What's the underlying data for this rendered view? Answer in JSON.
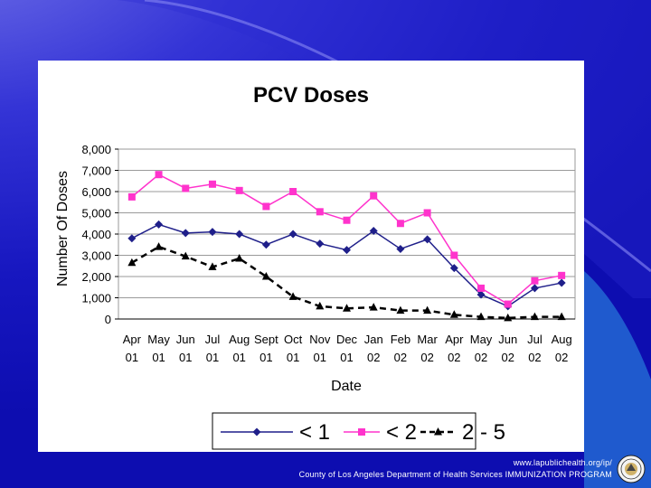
{
  "colors": {
    "lt1": "#1f1f8a",
    "lt2": "#ff33cc",
    "range": "#000000",
    "grid": "#9a9a9a",
    "plot_bg": "#ffffff"
  },
  "footer": {
    "url": "www.lapublichealth.org/ip/",
    "org": "County of Los Angeles Department of Health Services IMMUNIZATION PROGRAM"
  },
  "seal": {
    "icon": "county-seal-icon"
  },
  "chart_data": {
    "type": "line",
    "title": "PCV Doses",
    "xlabel": "Date",
    "ylabel": "Number Of Doses",
    "ylim": [
      0,
      8000
    ],
    "yticks": [
      "0",
      "1,000",
      "2,000",
      "3,000",
      "4,000",
      "5,000",
      "6,000",
      "7,000",
      "8,000"
    ],
    "grid": true,
    "legend_position": "bottom",
    "categories": [
      [
        "Apr",
        "01"
      ],
      [
        "May",
        "01"
      ],
      [
        "Jun",
        "01"
      ],
      [
        "Jul",
        "01"
      ],
      [
        "Aug",
        "01"
      ],
      [
        "Sept",
        "01"
      ],
      [
        "Oct",
        "01"
      ],
      [
        "Nov",
        "01"
      ],
      [
        "Dec",
        "01"
      ],
      [
        "Jan",
        "02"
      ],
      [
        "Feb",
        "02"
      ],
      [
        "Mar",
        "02"
      ],
      [
        "Apr",
        "02"
      ],
      [
        "May",
        "02"
      ],
      [
        "Jun",
        "02"
      ],
      [
        "Jul",
        "02"
      ],
      [
        "Aug",
        "02"
      ]
    ],
    "series": [
      {
        "name": "< 1",
        "legend_label": "< 1",
        "marker": "diamond",
        "line": "solid",
        "values": [
          3800,
          4450,
          4050,
          4100,
          4000,
          3500,
          4000,
          3550,
          3250,
          4150,
          3300,
          3750,
          2400,
          1150,
          600,
          1450,
          1700
        ]
      },
      {
        "name": "< 2",
        "legend_label": "< 2",
        "marker": "square",
        "line": "solid",
        "values": [
          5750,
          6800,
          6150,
          6350,
          6050,
          5300,
          6000,
          5050,
          4650,
          5800,
          4500,
          5000,
          3000,
          1450,
          700,
          1800,
          2050
        ]
      },
      {
        "name": "2 - 5",
        "legend_label": "2 - 5",
        "marker": "triangle",
        "line": "dashed",
        "values": [
          2650,
          3400,
          2950,
          2450,
          2850,
          2000,
          1050,
          600,
          500,
          550,
          400,
          400,
          200,
          100,
          50,
          100,
          100
        ]
      }
    ]
  }
}
